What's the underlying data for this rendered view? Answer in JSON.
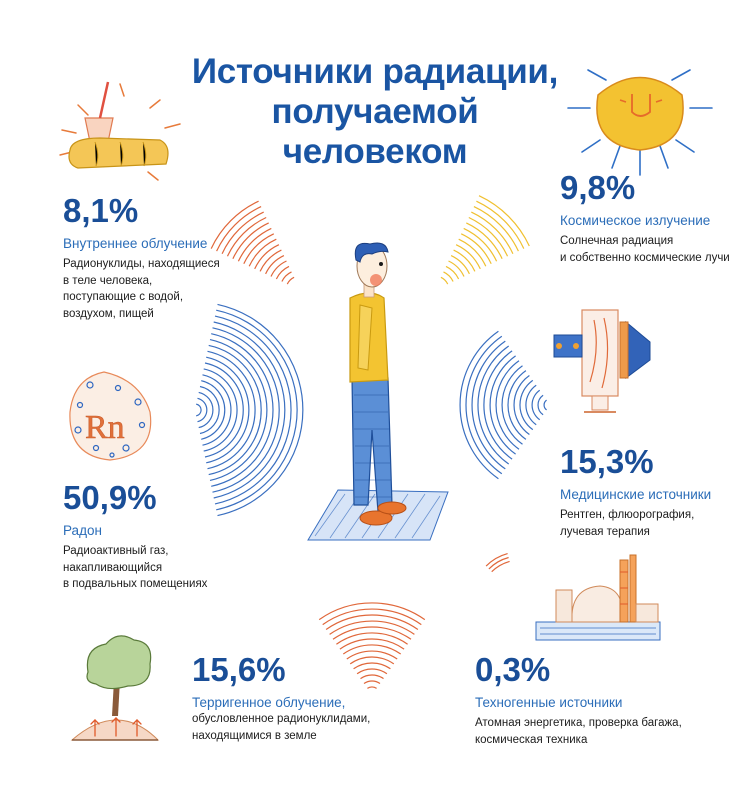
{
  "title": {
    "line1": "Источники радиации,",
    "line2": "получаемой",
    "line3": "человеком"
  },
  "colors": {
    "title": "#1a55a3",
    "percent": "#1a4e97",
    "label": "#2b6db8",
    "ray_orange": "#e0673a",
    "ray_yellow": "#f0c030",
    "ray_blue": "#3a6fc0"
  },
  "sources": [
    {
      "id": "internal",
      "percent": "8,1%",
      "label": "Внутреннее облучение",
      "desc": "Радионуклиды, находящиеся\nв теле человека,\nпоступающие с водой,\nвоздухом, пищей",
      "icon": "food-drink-icon"
    },
    {
      "id": "cosmic",
      "percent": "9,8%",
      "label": "Космическое излучение",
      "desc": "Солнечная радиация\nи собственно космические лучи",
      "icon": "sun-icon"
    },
    {
      "id": "radon",
      "percent": "50,9%",
      "label": "Радон",
      "desc": "Радиоактивный газ,\nнакапливающийся\nв подвальных помещениях",
      "icon": "radon-icon",
      "icon_text": "Rn"
    },
    {
      "id": "medical",
      "percent": "15,3%",
      "label": "Медицинские источники",
      "desc": "Рентген, флюорография,\nлучевая терапия",
      "icon": "xray-machine-icon"
    },
    {
      "id": "terrestrial",
      "percent": "15,6%",
      "label": "Терригенное облучение,",
      "desc": "обусловленное радионуклидами,\nнаходящимися в земле",
      "icon": "tree-icon"
    },
    {
      "id": "technogenic",
      "percent": "0,3%",
      "label": "Техногенные источники",
      "desc": "Атомная энергетика, проверка багажа,\nкосмическая техника",
      "icon": "power-plant-icon"
    }
  ]
}
